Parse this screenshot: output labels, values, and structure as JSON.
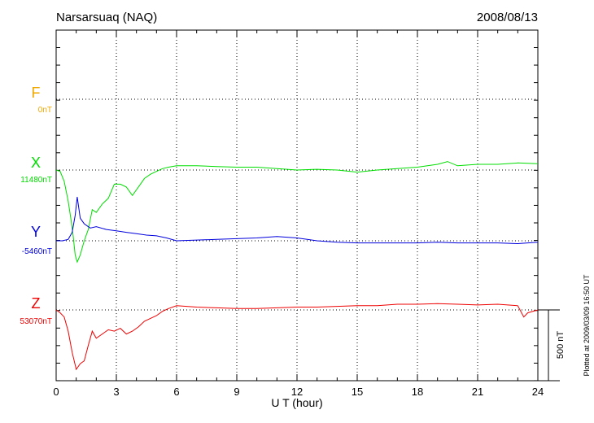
{
  "header": {
    "station": "Narsarsuaq (NAQ)",
    "date": "2008/08/13"
  },
  "footer": {
    "plotted": "Plotted at 2009/03/09 16:50 UT",
    "scale_label": "500 nT"
  },
  "chart_data": {
    "type": "line",
    "xlabel": "U T (hour)",
    "xlim": [
      0,
      24
    ],
    "xticks": [
      "0",
      "3",
      "6",
      "9",
      "12",
      "15",
      "18",
      "21",
      "24"
    ],
    "scale_bar_nT": 500,
    "series": [
      {
        "name": "F",
        "baseline_label": "0nT",
        "color": "#f0a800",
        "x": [],
        "offset_nT": []
      },
      {
        "name": "X",
        "baseline_label": "11480nT",
        "color": "#00dd00",
        "x": [
          0,
          0.2,
          0.4,
          0.6,
          0.75,
          0.85,
          0.95,
          1.05,
          1.2,
          1.4,
          1.6,
          1.8,
          2.0,
          2.3,
          2.6,
          2.9,
          3.2,
          3.5,
          3.8,
          4.1,
          4.4,
          4.7,
          5.0,
          5.3,
          5.6,
          6.0,
          7,
          8,
          9,
          10,
          11,
          12,
          13,
          14,
          15,
          16,
          17,
          18,
          19,
          19.5,
          20,
          21,
          22,
          23,
          24
        ],
        "offset_nT": [
          0,
          -10,
          -80,
          -220,
          -360,
          -470,
          -600,
          -650,
          -600,
          -500,
          -420,
          -280,
          -300,
          -240,
          -200,
          -100,
          -100,
          -120,
          -180,
          -120,
          -60,
          -30,
          -10,
          10,
          20,
          30,
          30,
          25,
          20,
          20,
          10,
          0,
          5,
          0,
          -15,
          0,
          10,
          20,
          40,
          60,
          30,
          40,
          40,
          50,
          45
        ]
      },
      {
        "name": "Y",
        "baseline_label": "-5460nT",
        "color": "#0000dd",
        "x": [
          0,
          0.3,
          0.6,
          0.8,
          0.95,
          1.05,
          1.2,
          1.4,
          1.7,
          2.0,
          2.5,
          3.0,
          3.5,
          4.0,
          4.5,
          5.0,
          5.5,
          6.0,
          7,
          8,
          9,
          10,
          11,
          12,
          13,
          14,
          15,
          16,
          17,
          18,
          19,
          20,
          21,
          22,
          23,
          24
        ],
        "offset_nT": [
          0,
          0,
          10,
          60,
          180,
          310,
          160,
          120,
          90,
          100,
          80,
          70,
          60,
          50,
          40,
          35,
          20,
          0,
          5,
          10,
          15,
          20,
          30,
          20,
          0,
          -10,
          -15,
          -15,
          -15,
          -15,
          -10,
          -15,
          -15,
          -15,
          -20,
          -10
        ]
      },
      {
        "name": "Z",
        "baseline_label": "53070nT",
        "color": "#ee0000",
        "x": [
          0,
          0.2,
          0.4,
          0.6,
          0.8,
          1.0,
          1.2,
          1.4,
          1.6,
          1.8,
          2.0,
          2.3,
          2.6,
          2.9,
          3.2,
          3.5,
          3.8,
          4.1,
          4.4,
          4.7,
          5.0,
          5.3,
          5.6,
          6.0,
          7,
          8,
          9,
          10,
          11,
          12,
          13,
          14,
          15,
          16,
          17,
          18,
          19,
          20,
          21,
          22,
          23,
          23.3,
          23.5,
          24
        ],
        "offset_nT": [
          0,
          -20,
          -50,
          -150,
          -300,
          -420,
          -380,
          -360,
          -250,
          -150,
          -200,
          -170,
          -140,
          -150,
          -130,
          -170,
          -150,
          -120,
          -80,
          -60,
          -40,
          -10,
          10,
          30,
          20,
          15,
          10,
          10,
          15,
          20,
          20,
          25,
          30,
          30,
          40,
          40,
          45,
          40,
          35,
          40,
          30,
          -50,
          -20,
          0
        ]
      }
    ]
  }
}
